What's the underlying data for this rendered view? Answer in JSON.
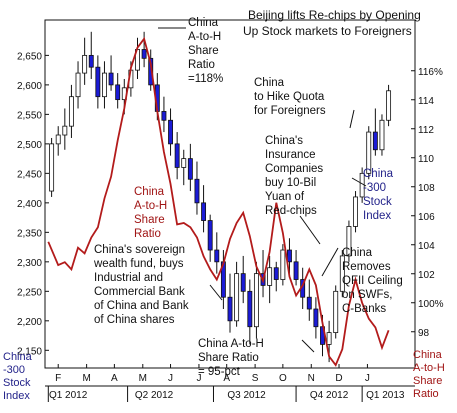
{
  "colors": {
    "candle_up": "#ffffff",
    "candle_down": "#1b1bd6",
    "candle_outline": "#111111",
    "ratio_line": "#b31b1b",
    "annotation_text": "#111111",
    "left_axis_text": "#23238a",
    "right_axis_text": "#a01515",
    "background": "#ffffff"
  },
  "chart_data": {
    "type": "candlestick_with_line",
    "title": "Beijing lifts Re-chips by Opening Up Stock markets to Foreigners",
    "left_axis": {
      "label_lines": [
        "China",
        "-300",
        "Stock",
        "Index"
      ],
      "ticks": [
        "2,650",
        "2,600",
        "2,550",
        "2,500",
        "2,450",
        "2,400",
        "2,350",
        "2,300",
        "2,250",
        "2,200",
        "2,150"
      ],
      "tick_values": [
        2650,
        2600,
        2550,
        2500,
        2450,
        2400,
        2350,
        2300,
        2250,
        2200,
        2150
      ],
      "range": [
        2120,
        2710
      ]
    },
    "right_axis": {
      "label_lines": [
        "China",
        "A-to-H",
        "Share",
        "Ratio"
      ],
      "ticks": [
        "116%",
        "114",
        "112",
        "110",
        "108",
        "106",
        "104",
        "102",
        "100%",
        "98"
      ],
      "tick_values": [
        116,
        114,
        112,
        110,
        108,
        106,
        104,
        102,
        100,
        98
      ],
      "range": [
        95.5,
        119.5
      ]
    },
    "x_months": [
      "F",
      "M",
      "A",
      "M",
      "J",
      "J",
      "A",
      "S",
      "O",
      "N",
      "D",
      "J"
    ],
    "x_month_pos": [
      2.0,
      6.3,
      10.5,
      14.8,
      19.0,
      23.3,
      27.5,
      31.8,
      36.0,
      40.3,
      44.5,
      48.8
    ],
    "x_quarters": [
      "Q1 2012",
      "Q2 2012",
      "Q3 2012",
      "Q4 2012",
      "Q1 2013"
    ],
    "x_quarter_pos": [
      3.5,
      16.5,
      30.5,
      43.0,
      51.5
    ],
    "x_range": [
      0,
      56
    ],
    "candles": [
      {
        "x": 1,
        "o": 2420,
        "h": 2510,
        "l": 2410,
        "c": 2500
      },
      {
        "x": 2,
        "o": 2500,
        "h": 2530,
        "l": 2480,
        "c": 2515
      },
      {
        "x": 3,
        "o": 2515,
        "h": 2560,
        "l": 2490,
        "c": 2530
      },
      {
        "x": 4,
        "o": 2530,
        "h": 2600,
        "l": 2510,
        "c": 2580
      },
      {
        "x": 5,
        "o": 2580,
        "h": 2640,
        "l": 2560,
        "c": 2620
      },
      {
        "x": 6,
        "o": 2620,
        "h": 2680,
        "l": 2600,
        "c": 2650
      },
      {
        "x": 7,
        "o": 2650,
        "h": 2690,
        "l": 2610,
        "c": 2630
      },
      {
        "x": 8,
        "o": 2630,
        "h": 2650,
        "l": 2560,
        "c": 2580
      },
      {
        "x": 9,
        "o": 2580,
        "h": 2640,
        "l": 2560,
        "c": 2620
      },
      {
        "x": 10,
        "o": 2620,
        "h": 2650,
        "l": 2590,
        "c": 2600
      },
      {
        "x": 11,
        "o": 2600,
        "h": 2620,
        "l": 2560,
        "c": 2575
      },
      {
        "x": 12,
        "o": 2575,
        "h": 2610,
        "l": 2550,
        "c": 2595
      },
      {
        "x": 13,
        "o": 2595,
        "h": 2640,
        "l": 2580,
        "c": 2625
      },
      {
        "x": 14,
        "o": 2625,
        "h": 2680,
        "l": 2610,
        "c": 2660
      },
      {
        "x": 15,
        "o": 2660,
        "h": 2690,
        "l": 2630,
        "c": 2645
      },
      {
        "x": 16,
        "o": 2645,
        "h": 2660,
        "l": 2590,
        "c": 2600
      },
      {
        "x": 17,
        "o": 2600,
        "h": 2620,
        "l": 2540,
        "c": 2555
      },
      {
        "x": 18,
        "o": 2555,
        "h": 2580,
        "l": 2520,
        "c": 2540
      },
      {
        "x": 19,
        "o": 2540,
        "h": 2560,
        "l": 2480,
        "c": 2500
      },
      {
        "x": 20,
        "o": 2500,
        "h": 2520,
        "l": 2440,
        "c": 2460
      },
      {
        "x": 21,
        "o": 2460,
        "h": 2490,
        "l": 2430,
        "c": 2475
      },
      {
        "x": 22,
        "o": 2475,
        "h": 2500,
        "l": 2420,
        "c": 2440
      },
      {
        "x": 23,
        "o": 2440,
        "h": 2470,
        "l": 2380,
        "c": 2400
      },
      {
        "x": 24,
        "o": 2400,
        "h": 2430,
        "l": 2350,
        "c": 2370
      },
      {
        "x": 25,
        "o": 2370,
        "h": 2380,
        "l": 2300,
        "c": 2320
      },
      {
        "x": 26,
        "o": 2320,
        "h": 2350,
        "l": 2280,
        "c": 2300
      },
      {
        "x": 27,
        "o": 2300,
        "h": 2320,
        "l": 2220,
        "c": 2240
      },
      {
        "x": 28,
        "o": 2240,
        "h": 2280,
        "l": 2180,
        "c": 2200
      },
      {
        "x": 29,
        "o": 2200,
        "h": 2300,
        "l": 2190,
        "c": 2280
      },
      {
        "x": 30,
        "o": 2280,
        "h": 2310,
        "l": 2230,
        "c": 2250
      },
      {
        "x": 31,
        "o": 2250,
        "h": 2270,
        "l": 2160,
        "c": 2190
      },
      {
        "x": 32,
        "o": 2190,
        "h": 2300,
        "l": 2170,
        "c": 2280
      },
      {
        "x": 33,
        "o": 2280,
        "h": 2320,
        "l": 2240,
        "c": 2260
      },
      {
        "x": 34,
        "o": 2260,
        "h": 2310,
        "l": 2230,
        "c": 2290
      },
      {
        "x": 35,
        "o": 2290,
        "h": 2300,
        "l": 2250,
        "c": 2270
      },
      {
        "x": 36,
        "o": 2270,
        "h": 2330,
        "l": 2260,
        "c": 2320
      },
      {
        "x": 37,
        "o": 2320,
        "h": 2340,
        "l": 2280,
        "c": 2300
      },
      {
        "x": 38,
        "o": 2300,
        "h": 2320,
        "l": 2260,
        "c": 2270
      },
      {
        "x": 39,
        "o": 2270,
        "h": 2290,
        "l": 2220,
        "c": 2240
      },
      {
        "x": 40,
        "o": 2240,
        "h": 2270,
        "l": 2200,
        "c": 2220
      },
      {
        "x": 41,
        "o": 2220,
        "h": 2240,
        "l": 2170,
        "c": 2190
      },
      {
        "x": 42,
        "o": 2190,
        "h": 2210,
        "l": 2140,
        "c": 2160
      },
      {
        "x": 43,
        "o": 2160,
        "h": 2200,
        "l": 2130,
        "c": 2180
      },
      {
        "x": 44,
        "o": 2180,
        "h": 2260,
        "l": 2170,
        "c": 2250
      },
      {
        "x": 45,
        "o": 2250,
        "h": 2320,
        "l": 2240,
        "c": 2310
      },
      {
        "x": 46,
        "o": 2310,
        "h": 2370,
        "l": 2300,
        "c": 2360
      },
      {
        "x": 47,
        "o": 2360,
        "h": 2420,
        "l": 2350,
        "c": 2410
      },
      {
        "x": 48,
        "o": 2410,
        "h": 2460,
        "l": 2400,
        "c": 2450
      },
      {
        "x": 49,
        "o": 2450,
        "h": 2530,
        "l": 2440,
        "c": 2520
      },
      {
        "x": 50,
        "o": 2520,
        "h": 2560,
        "l": 2480,
        "c": 2490
      },
      {
        "x": 51,
        "o": 2490,
        "h": 2550,
        "l": 2480,
        "c": 2540
      },
      {
        "x": 52,
        "o": 2540,
        "h": 2600,
        "l": 2530,
        "c": 2590
      }
    ],
    "ratio_line": [
      {
        "x": 0.5,
        "v": 104.2
      },
      {
        "x": 2,
        "v": 102.6
      },
      {
        "x": 3,
        "v": 102.8
      },
      {
        "x": 4,
        "v": 102.3
      },
      {
        "x": 5,
        "v": 103.8
      },
      {
        "x": 6,
        "v": 103.4
      },
      {
        "x": 7,
        "v": 104.5
      },
      {
        "x": 8,
        "v": 105.2
      },
      {
        "x": 9,
        "v": 107.2
      },
      {
        "x": 10,
        "v": 108.7
      },
      {
        "x": 11,
        "v": 111.2
      },
      {
        "x": 12,
        "v": 113.4
      },
      {
        "x": 13,
        "v": 116.2
      },
      {
        "x": 14,
        "v": 117.6
      },
      {
        "x": 15,
        "v": 118.2
      },
      {
        "x": 16,
        "v": 116.5
      },
      {
        "x": 17,
        "v": 113.2
      },
      {
        "x": 18,
        "v": 110.4
      },
      {
        "x": 19,
        "v": 108.2
      },
      {
        "x": 20,
        "v": 105.4
      },
      {
        "x": 21,
        "v": 105.5
      },
      {
        "x": 22,
        "v": 105.2
      },
      {
        "x": 23,
        "v": 104.5
      },
      {
        "x": 24,
        "v": 103.2
      },
      {
        "x": 25,
        "v": 102.3
      },
      {
        "x": 26,
        "v": 101.6
      },
      {
        "x": 27,
        "v": 102.7
      },
      {
        "x": 28,
        "v": 104.4
      },
      {
        "x": 29,
        "v": 105.5
      },
      {
        "x": 30,
        "v": 106.2
      },
      {
        "x": 31,
        "v": 104.6
      },
      {
        "x": 32,
        "v": 102.5
      },
      {
        "x": 33,
        "v": 101.5
      },
      {
        "x": 34,
        "v": 103.5
      },
      {
        "x": 35,
        "v": 106.9
      },
      {
        "x": 36,
        "v": 104.8
      },
      {
        "x": 37,
        "v": 101.8
      },
      {
        "x": 38,
        "v": 100.5
      },
      {
        "x": 39,
        "v": 101.2
      },
      {
        "x": 40,
        "v": 102.3
      },
      {
        "x": 41,
        "v": 101.2
      },
      {
        "x": 42,
        "v": 98.6
      },
      {
        "x": 43,
        "v": 96.3
      },
      {
        "x": 44,
        "v": 95.7
      },
      {
        "x": 45,
        "v": 96.8
      },
      {
        "x": 46,
        "v": 99.8
      },
      {
        "x": 47,
        "v": 101.6
      },
      {
        "x": 48,
        "v": 100.0
      },
      {
        "x": 49,
        "v": 98.9
      },
      {
        "x": 50,
        "v": 98.3
      },
      {
        "x": 51,
        "v": 96.9
      },
      {
        "x": 52,
        "v": 98.1
      }
    ],
    "annotations": [
      {
        "lines": [
          "China",
          "A-to-H",
          "Share",
          "Ratio",
          "=118%"
        ],
        "color": "text"
      },
      {
        "lines": [
          "China",
          "to Hike Quota",
          "for Foreigners"
        ],
        "color": "text"
      },
      {
        "lines": [
          "China's",
          "Insurance",
          "Companies",
          "buy 10-Bil",
          "Yuan of",
          "Red-chips"
        ],
        "color": "text"
      },
      {
        "lines": [
          "China",
          "A-to-H",
          "Share",
          "Ratio"
        ],
        "color": "red"
      },
      {
        "lines": [
          "China",
          "-300",
          "Stock",
          "Index"
        ],
        "color": "blue"
      },
      {
        "lines": [
          "China's sovereign",
          "wealth fund, buys",
          "Industrial and",
          "Commercial Bank",
          "of China and Bank",
          "of China shares"
        ],
        "color": "text"
      },
      {
        "lines": [
          "China",
          "Removes",
          "QFII Ceiling",
          "on SWFs,",
          "C-Banks"
        ],
        "color": "text"
      },
      {
        "lines": [
          "China A-to-H",
          "Share Ratio",
          "= 95-pct"
        ],
        "color": "text"
      }
    ]
  }
}
